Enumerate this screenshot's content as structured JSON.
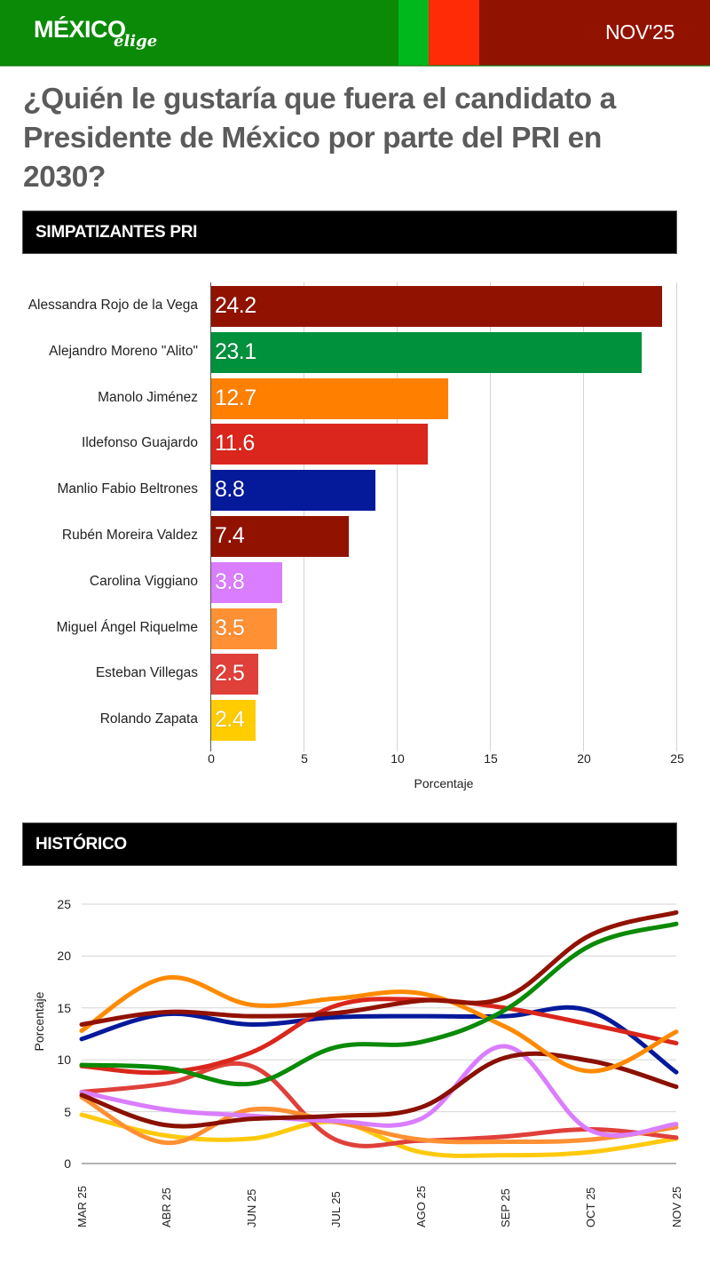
{
  "header": {
    "logo_main": "MÉXICO",
    "logo_sub": "elige",
    "date": "NOV'25",
    "colors": [
      "#0a8a06",
      "#00b81c",
      "#ff2a06",
      "#921200"
    ]
  },
  "question": "¿Quién le gustaría que fuera el candidato a Presidente de México por parte del PRI en 2030?",
  "sections": {
    "bar_title": "SIMPATIZANTES PRI",
    "line_title": "HISTÓRICO"
  },
  "chart_data": [
    {
      "type": "bar",
      "orientation": "horizontal",
      "title": "SIMPATIZANTES PRI",
      "xlabel": "Porcentaje",
      "ylabel": "",
      "xlim": [
        0,
        25
      ],
      "x_ticks": [
        "0",
        "5",
        "10",
        "15",
        "20",
        "25"
      ],
      "grid": true,
      "categories": [
        "Alessandra Rojo de la Vega",
        "Alejandro Moreno \"Alito\"",
        "Manolo Jiménez",
        "Ildefonso Guajardo",
        "Manlio Fabio Beltrones",
        "Rubén Moreira Valdez",
        "Carolina Viggiano",
        "Miguel Ángel Riquelme",
        "Esteban Villegas",
        "Rolando Zapata"
      ],
      "values": [
        24.2,
        23.1,
        12.7,
        11.6,
        8.8,
        7.4,
        3.8,
        3.5,
        2.5,
        2.4
      ],
      "value_labels": [
        "24.2",
        "23.1",
        "12.7",
        "11.6",
        "8.8",
        "7.4",
        "3.8",
        "3.5",
        "2.5",
        "2.4"
      ],
      "colors": [
        "#921200",
        "#00913c",
        "#ff8000",
        "#da261c",
        "#041a9a",
        "#921200",
        "#da7dff",
        "#ff9033",
        "#e0403a",
        "#ffcc00"
      ]
    },
    {
      "type": "line",
      "title": "HISTÓRICO",
      "xlabel": "",
      "ylabel": "Porcentaje",
      "ylim": [
        0,
        25
      ],
      "y_ticks": [
        "0",
        "5",
        "10",
        "15",
        "20",
        "25"
      ],
      "grid": true,
      "legend": "none",
      "x": [
        "MAR 25",
        "ABR 25",
        "JUN 25",
        "JUL 25",
        "AGO 25",
        "SEP 25",
        "OCT 25",
        "NOV 25"
      ],
      "series": [
        {
          "name": "Alessandra Rojo de la Vega",
          "color": "#921200",
          "values": [
            13.4,
            14.6,
            14.2,
            14.5,
            15.7,
            16.0,
            22.0,
            24.2
          ]
        },
        {
          "name": "Alejandro Moreno \"Alito\"",
          "color": "#0a8a06",
          "values": [
            9.5,
            9.2,
            7.7,
            11.2,
            11.7,
            14.8,
            21.0,
            23.1
          ]
        },
        {
          "name": "Manolo Jiménez",
          "color": "#ff8a00",
          "values": [
            12.8,
            17.9,
            15.3,
            15.9,
            16.4,
            13.2,
            8.9,
            12.7
          ]
        },
        {
          "name": "Ildefonso Guajardo",
          "color": "#da261c",
          "values": [
            9.4,
            8.8,
            10.7,
            15.2,
            15.8,
            15.0,
            13.4,
            11.6
          ]
        },
        {
          "name": "Manlio Fabio Beltrones",
          "color": "#041a9a",
          "values": [
            12.0,
            14.4,
            13.4,
            14.1,
            14.2,
            14.2,
            14.7,
            8.8
          ]
        },
        {
          "name": "Rubén Moreira Valdez",
          "color": "#8a1000",
          "values": [
            6.6,
            3.7,
            4.3,
            4.6,
            5.4,
            10.2,
            9.9,
            7.4
          ]
        },
        {
          "name": "Carolina Viggiano",
          "color": "#da7dff",
          "values": [
            6.9,
            5.2,
            4.6,
            4.1,
            4.3,
            11.3,
            3.2,
            3.8
          ]
        },
        {
          "name": "Miguel Ángel Riquelme",
          "color": "#ff9033",
          "values": [
            6.4,
            2.0,
            5.2,
            4.0,
            2.3,
            2.1,
            2.3,
            3.5
          ]
        },
        {
          "name": "Esteban Villegas",
          "color": "#e0403a",
          "values": [
            6.9,
            7.7,
            9.4,
            2.3,
            2.2,
            2.6,
            3.3,
            2.5
          ]
        },
        {
          "name": "Rolando Zapata",
          "color": "#ffc90e",
          "values": [
            4.7,
            2.7,
            2.4,
            4.0,
            1.1,
            0.8,
            1.1,
            2.4
          ]
        }
      ]
    }
  ]
}
